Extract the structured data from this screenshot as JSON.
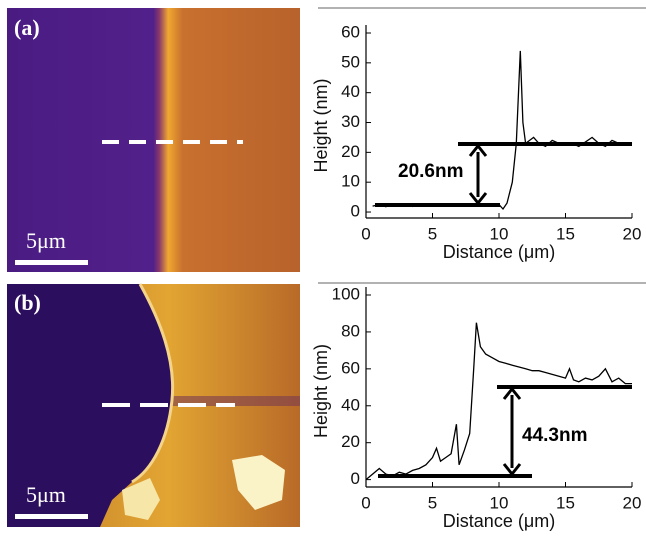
{
  "panels": [
    {
      "label": "(a)",
      "scale_bar": "5μm"
    },
    {
      "label": "(b)",
      "scale_bar": "5μm"
    }
  ],
  "chart_data": [
    {
      "type": "line",
      "x_label": "Distance (μm)",
      "y_label": "Height (nm)",
      "annotation": "20.6nm",
      "xlim": [
        0,
        20
      ],
      "xticks": [
        0,
        5,
        10,
        15,
        20
      ],
      "ylim": [
        -2,
        60
      ],
      "yticks": [
        0,
        10,
        20,
        30,
        40,
        50,
        60
      ],
      "x": [
        0.5,
        1,
        1.5,
        2,
        2.5,
        3,
        3.5,
        4,
        4.5,
        5,
        5.5,
        6,
        6.5,
        7,
        7.5,
        8,
        8.5,
        9,
        9.5,
        10,
        10.3,
        10.6,
        11,
        11.3,
        11.6,
        11.8,
        12,
        12.3,
        12.6,
        13,
        13.5,
        14,
        14.5,
        15,
        15.5,
        16,
        16.5,
        17,
        17.5,
        18,
        18.5,
        19,
        19.5,
        20
      ],
      "series": [
        {
          "color": "#000000",
          "values": [
            2,
            2.5,
            1.8,
            2.6,
            2,
            2.4,
            1.9,
            2.5,
            2.2,
            2,
            2.6,
            2.1,
            2.4,
            2.3,
            2,
            2.5,
            2.2,
            2.6,
            2.3,
            2.5,
            1,
            3,
            10,
            23,
            54,
            30,
            23,
            24,
            25,
            23,
            22,
            24,
            23,
            22.5,
            23,
            22,
            23.5,
            25,
            23,
            22,
            24,
            23,
            22.5,
            23
          ]
        }
      ]
    },
    {
      "type": "line",
      "x_label": "Distance (μm)",
      "y_label": "Height (nm)",
      "annotation": "44.3nm",
      "xlim": [
        0,
        20
      ],
      "xticks": [
        0,
        5,
        10,
        15,
        20
      ],
      "ylim": [
        -4,
        100
      ],
      "yticks": [
        0,
        20,
        40,
        60,
        80,
        100
      ],
      "x": [
        0,
        0.5,
        1,
        1.5,
        2,
        2.5,
        3,
        3.5,
        4,
        4.5,
        5,
        5.3,
        5.6,
        6,
        6.4,
        6.8,
        7,
        7.4,
        7.8,
        8.1,
        8.3,
        8.6,
        9,
        9.5,
        10,
        10.5,
        11,
        11.5,
        12,
        12.5,
        13,
        13.5,
        14,
        14.5,
        15,
        15.3,
        15.6,
        16,
        16.5,
        17,
        17.5,
        18,
        18.5,
        19,
        19.5,
        20
      ],
      "series": [
        {
          "color": "#000000",
          "values": [
            0,
            3,
            6,
            3,
            2,
            4,
            3,
            5,
            6,
            8,
            12,
            17,
            10,
            12,
            14,
            30,
            8,
            16,
            25,
            60,
            85,
            72,
            68,
            66,
            64,
            63,
            62,
            61,
            60,
            59,
            59,
            58,
            57,
            56,
            55,
            60,
            54,
            53,
            55,
            54,
            56,
            60,
            53,
            55,
            52,
            52
          ]
        }
      ]
    }
  ]
}
